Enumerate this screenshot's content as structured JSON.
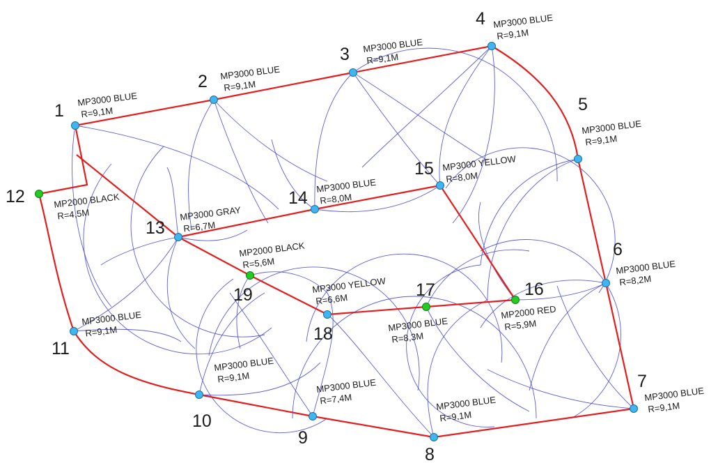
{
  "colors": {
    "pipe": "#e31d1d",
    "coverage_arc": "#4a4ad6",
    "blue_head": "#3fb6f0",
    "green_head": "#22cc22",
    "text": "#1a1a1a"
  },
  "sprinklers": [
    {
      "id": "1",
      "num": "1",
      "model": "MP3000 BLUE",
      "radius": "R=9,1M",
      "head_color": "blue"
    },
    {
      "id": "2",
      "num": "2",
      "model": "MP3000 BLUE",
      "radius": "R=9,1M",
      "head_color": "blue"
    },
    {
      "id": "3",
      "num": "3",
      "model": "MP3000 BLUE",
      "radius": "R=9,1M",
      "head_color": "blue"
    },
    {
      "id": "4",
      "num": "4",
      "model": "MP3000 BLUE",
      "radius": "R=9,1M",
      "head_color": "blue"
    },
    {
      "id": "5",
      "num": "5",
      "model": "MP3000 BLUE",
      "radius": "R=9,1M",
      "head_color": "blue"
    },
    {
      "id": "6",
      "num": "6",
      "model": "MP3000 BLUE",
      "radius": "R=8,2M",
      "head_color": "blue"
    },
    {
      "id": "7",
      "num": "7",
      "model": "MP3000 BLUE",
      "radius": "R=9,1M",
      "head_color": "blue"
    },
    {
      "id": "8",
      "num": "8",
      "model": "MP3000 BLUE",
      "radius": "R=9,1M",
      "head_color": "blue"
    },
    {
      "id": "9",
      "num": "9",
      "model": "MP3000 BLUE",
      "radius": "R=7,4M",
      "head_color": "blue"
    },
    {
      "id": "10",
      "num": "10",
      "model": "MP3000 BLUE",
      "radius": "R=9,1M",
      "head_color": "blue"
    },
    {
      "id": "11",
      "num": "11",
      "model": "MP3000 BLUE",
      "radius": "R=9,1M",
      "head_color": "blue"
    },
    {
      "id": "12",
      "num": "12",
      "model": "MP2000 BLACK",
      "radius": "R=4,5M",
      "head_color": "green"
    },
    {
      "id": "13",
      "num": "13",
      "model": "MP3000 GRAY",
      "radius": "R=6,7M",
      "head_color": "blue"
    },
    {
      "id": "14",
      "num": "14",
      "model": "MP3000 BLUE",
      "radius": "R=8,0M",
      "head_color": "blue"
    },
    {
      "id": "15",
      "num": "15",
      "model": "MP3000 YELLOW",
      "radius": "R=8,0M",
      "head_color": "blue"
    },
    {
      "id": "16",
      "num": "16",
      "model": "MP2000 RED",
      "radius": "R=5,9M",
      "head_color": "green"
    },
    {
      "id": "17",
      "num": "17",
      "model": "MP3000 BLUE",
      "radius": "R=8,3M",
      "head_color": "green"
    },
    {
      "id": "18",
      "num": "18",
      "model": "MP3000 YELLOW",
      "radius": "R=6,6M",
      "head_color": "blue"
    },
    {
      "id": "19",
      "num": "19",
      "model": "MP2000 BLACK",
      "radius": "R=5,6M",
      "head_color": "green"
    }
  ]
}
